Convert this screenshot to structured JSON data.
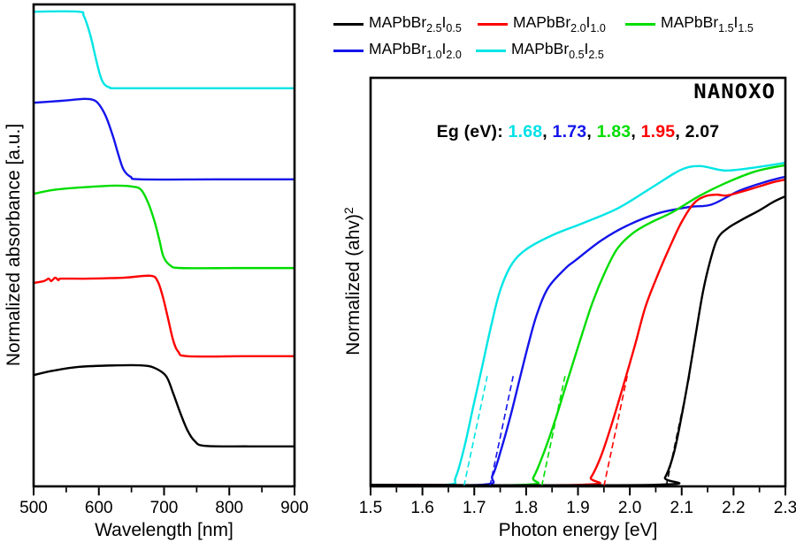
{
  "logo_text": "NANOXO",
  "legend": {
    "items": [
      {
        "color": "#000000",
        "base": "MAPbBr",
        "sub1": "2.5",
        "element": "I",
        "sub2": "0.5"
      },
      {
        "color": "#ff0000",
        "base": "MAPbBr",
        "sub1": "2.0",
        "element": "I",
        "sub2": "1.0"
      },
      {
        "color": "#00dd00",
        "base": "MAPbBr",
        "sub1": "1.5",
        "element": "I",
        "sub2": "1.5"
      },
      {
        "color": "#1414eb",
        "base": "MAPbBr",
        "sub1": "1.0",
        "element": "I",
        "sub2": "2.0"
      },
      {
        "color": "#00e5e5",
        "base": "MAPbBr",
        "sub1": "0.5",
        "element": "I",
        "sub2": "2.5"
      }
    ]
  },
  "eg_annotation": {
    "prefix": "Eg (eV): ",
    "values": [
      {
        "v": "1.68",
        "sep": ", ",
        "color": "#00e0e8"
      },
      {
        "v": "1.73",
        "sep": ", ",
        "color": "#1414eb"
      },
      {
        "v": "1.83",
        "sep": ", ",
        "color": "#00dd00"
      },
      {
        "v": "1.95",
        "sep": ", ",
        "color": "#ff0000"
      },
      {
        "v": "2.07",
        "sep": "",
        "color": "#000000"
      }
    ]
  },
  "left_axis": {
    "xlabel": "Wavelength [nm]",
    "ylabel": "Normalized absorbance [a.u.]"
  },
  "right_axis": {
    "xlabel": "Photon energy [eV]",
    "ylabel_main": "Normalized (ahv)",
    "ylabel_sup": "2"
  },
  "chart_data": [
    {
      "type": "line",
      "panel": "left",
      "xlabel": "Wavelength [nm]",
      "ylabel": "Normalized absorbance [a.u.]",
      "xlim": [
        500,
        900
      ],
      "ylim": [
        0,
        1
      ],
      "grid": false,
      "x_ticks": [
        {
          "v": 500,
          "label": "500"
        },
        {
          "v": 600,
          "label": "600"
        },
        {
          "v": 700,
          "label": "700"
        },
        {
          "v": 800,
          "label": "800"
        },
        {
          "v": 900,
          "label": "900"
        }
      ],
      "x_minor_ticks": [
        550,
        650,
        750,
        850
      ],
      "series": [
        {
          "name": "MAPbBr0.5I2.5",
          "color": "#00e5e5",
          "points": [
            [
              500,
              0.985
            ],
            [
              568,
              0.985
            ],
            [
              577,
              0.976
            ],
            [
              587,
              0.936
            ],
            [
              595,
              0.89
            ],
            [
              602,
              0.853
            ],
            [
              608,
              0.835
            ],
            [
              618,
              0.827
            ],
            [
              632,
              0.826
            ],
            [
              760,
              0.826
            ],
            [
              900,
              0.826
            ]
          ]
        },
        {
          "name": "MAPbBr1.0I2.0",
          "color": "#1414eb",
          "points": [
            [
              500,
              0.796
            ],
            [
              543,
              0.8
            ],
            [
              577,
              0.804
            ],
            [
              591,
              0.802
            ],
            [
              600,
              0.793
            ],
            [
              611,
              0.767
            ],
            [
              622,
              0.725
            ],
            [
              630,
              0.688
            ],
            [
              638,
              0.657
            ],
            [
              649,
              0.642
            ],
            [
              665,
              0.637
            ],
            [
              780,
              0.637
            ],
            [
              900,
              0.637
            ]
          ]
        },
        {
          "name": "MAPbBr1.5I1.5",
          "color": "#00dd00",
          "points": [
            [
              500,
              0.607
            ],
            [
              530,
              0.615
            ],
            [
              570,
              0.62
            ],
            [
              625,
              0.624
            ],
            [
              652,
              0.622
            ],
            [
              665,
              0.615
            ],
            [
              676,
              0.587
            ],
            [
              686,
              0.547
            ],
            [
              693,
              0.51
            ],
            [
              699,
              0.477
            ],
            [
              709,
              0.459
            ],
            [
              726,
              0.453
            ],
            [
              810,
              0.453
            ],
            [
              900,
              0.453
            ]
          ]
        },
        {
          "name": "MAPbBr2.0I1.0",
          "color": "#ff0000",
          "points": [
            [
              500,
              0.422
            ],
            [
              516,
              0.426
            ],
            [
              523,
              0.431
            ],
            [
              527,
              0.426
            ],
            [
              533,
              0.433
            ],
            [
              538,
              0.428
            ],
            [
              543,
              0.431
            ],
            [
              584,
              0.431
            ],
            [
              638,
              0.433
            ],
            [
              679,
              0.437
            ],
            [
              690,
              0.426
            ],
            [
              698,
              0.394
            ],
            [
              706,
              0.349
            ],
            [
              714,
              0.303
            ],
            [
              722,
              0.279
            ],
            [
              736,
              0.27
            ],
            [
              820,
              0.27
            ],
            [
              900,
              0.27
            ]
          ]
        },
        {
          "name": "MAPbBr2.5I0.5",
          "color": "#000000",
          "points": [
            [
              500,
              0.231
            ],
            [
              530,
              0.24
            ],
            [
              570,
              0.248
            ],
            [
              625,
              0.251
            ],
            [
              665,
              0.251
            ],
            [
              685,
              0.246
            ],
            [
              703,
              0.229
            ],
            [
              714,
              0.193
            ],
            [
              725,
              0.152
            ],
            [
              736,
              0.116
            ],
            [
              747,
              0.094
            ],
            [
              763,
              0.084
            ],
            [
              830,
              0.083
            ],
            [
              900,
              0.083
            ]
          ]
        }
      ]
    },
    {
      "type": "line",
      "panel": "right",
      "xlabel": "Photon energy [eV]",
      "ylabel": "Normalized (ahv)^2",
      "xlim": [
        1.5,
        2.3
      ],
      "ylim": [
        0,
        1
      ],
      "grid": false,
      "x_ticks": [
        {
          "v": 1.5,
          "label": "1.5"
        },
        {
          "v": 1.6,
          "label": "1.6"
        },
        {
          "v": 1.7,
          "label": "1.7"
        },
        {
          "v": 1.8,
          "label": "1.8"
        },
        {
          "v": 1.9,
          "label": "1.9"
        },
        {
          "v": 2.0,
          "label": "2.0"
        },
        {
          "v": 2.1,
          "label": "2.1"
        },
        {
          "v": 2.2,
          "label": "2.2"
        },
        {
          "v": 2.3,
          "label": "2.3"
        }
      ],
      "x_minor_ticks": [
        1.55,
        1.65,
        1.75,
        1.85,
        1.95,
        2.05,
        2.15,
        2.25
      ],
      "band_gaps_eV": {
        "MAPbBr0.5I2.5": 1.68,
        "MAPbBr1.0I2.0": 1.73,
        "MAPbBr1.5I1.5": 1.83,
        "MAPbBr2.0I1.0": 1.95,
        "MAPbBr2.5I0.5": 2.07
      },
      "series": [
        {
          "name": "MAPbBr0.5I2.5",
          "color": "#00e5e5",
          "points": [
            [
              1.5,
              0.004
            ],
            [
              1.647,
              0.004
            ],
            [
              1.664,
              0.022
            ],
            [
              1.681,
              0.097
            ],
            [
              1.698,
              0.195
            ],
            [
              1.715,
              0.292
            ],
            [
              1.732,
              0.39
            ],
            [
              1.749,
              0.476
            ],
            [
              1.771,
              0.541
            ],
            [
              1.8,
              0.58
            ],
            [
              1.851,
              0.615
            ],
            [
              1.911,
              0.645
            ],
            [
              1.979,
              0.682
            ],
            [
              2.048,
              0.736
            ],
            [
              2.099,
              0.775
            ],
            [
              2.136,
              0.784
            ],
            [
              2.184,
              0.773
            ],
            [
              2.244,
              0.781
            ],
            [
              2.3,
              0.792
            ]
          ]
        },
        {
          "name": "MAPbBr1.0I2.0",
          "color": "#1414eb",
          "points": [
            [
              1.5,
              0.004
            ],
            [
              1.715,
              0.004
            ],
            [
              1.735,
              0.026
            ],
            [
              1.752,
              0.091
            ],
            [
              1.77,
              0.173
            ],
            [
              1.787,
              0.26
            ],
            [
              1.804,
              0.346
            ],
            [
              1.821,
              0.422
            ],
            [
              1.843,
              0.487
            ],
            [
              1.877,
              0.535
            ],
            [
              1.894,
              0.552
            ],
            [
              1.945,
              0.602
            ],
            [
              1.996,
              0.639
            ],
            [
              2.056,
              0.669
            ],
            [
              2.116,
              0.684
            ],
            [
              2.158,
              0.69
            ],
            [
              2.21,
              0.723
            ],
            [
              2.261,
              0.745
            ],
            [
              2.3,
              0.758
            ]
          ]
        },
        {
          "name": "MAPbBr1.5I1.5",
          "color": "#00dd00",
          "points": [
            [
              1.5,
              0.004
            ],
            [
              1.797,
              0.004
            ],
            [
              1.814,
              0.022
            ],
            [
              1.834,
              0.082
            ],
            [
              1.856,
              0.162
            ],
            [
              1.88,
              0.26
            ],
            [
              1.904,
              0.357
            ],
            [
              1.928,
              0.45
            ],
            [
              1.952,
              0.524
            ],
            [
              1.976,
              0.582
            ],
            [
              2.005,
              0.619
            ],
            [
              2.039,
              0.645
            ],
            [
              2.082,
              0.671
            ],
            [
              2.133,
              0.71
            ],
            [
              2.184,
              0.742
            ],
            [
              2.235,
              0.768
            ],
            [
              2.269,
              0.779
            ],
            [
              2.3,
              0.786
            ]
          ]
        },
        {
          "name": "MAPbBr2.0I1.0",
          "color": "#ff0000",
          "points": [
            [
              1.5,
              0.004
            ],
            [
              1.908,
              0.004
            ],
            [
              1.925,
              0.022
            ],
            [
              1.945,
              0.076
            ],
            [
              1.966,
              0.156
            ],
            [
              1.988,
              0.249
            ],
            [
              2.01,
              0.346
            ],
            [
              2.03,
              0.439
            ],
            [
              2.053,
              0.515
            ],
            [
              2.075,
              0.58
            ],
            [
              2.099,
              0.645
            ],
            [
              2.123,
              0.692
            ],
            [
              2.145,
              0.71
            ],
            [
              2.167,
              0.714
            ],
            [
              2.187,
              0.712
            ],
            [
              2.215,
              0.721
            ],
            [
              2.249,
              0.734
            ],
            [
              2.278,
              0.745
            ],
            [
              2.3,
              0.751
            ]
          ]
        },
        {
          "name": "MAPbBr2.5I0.5",
          "color": "#000000",
          "points": [
            [
              1.5,
              0.004
            ],
            [
              2.05,
              0.004
            ],
            [
              2.068,
              0.022
            ],
            [
              2.085,
              0.082
            ],
            [
              2.1,
              0.173
            ],
            [
              2.114,
              0.271
            ],
            [
              2.128,
              0.379
            ],
            [
              2.141,
              0.476
            ],
            [
              2.155,
              0.552
            ],
            [
              2.169,
              0.606
            ],
            [
              2.189,
              0.632
            ],
            [
              2.218,
              0.654
            ],
            [
              2.249,
              0.675
            ],
            [
              2.278,
              0.697
            ],
            [
              2.3,
              0.71
            ]
          ]
        }
      ],
      "tangents": [
        {
          "color": "#00e5e5",
          "x0": 1.68,
          "y0": 0.0,
          "x1": 1.725,
          "y1": 0.27
        },
        {
          "color": "#1414eb",
          "x0": 1.73,
          "y0": 0.0,
          "x1": 1.775,
          "y1": 0.27
        },
        {
          "color": "#00dd00",
          "x0": 1.83,
          "y0": 0.0,
          "x1": 1.875,
          "y1": 0.27
        },
        {
          "color": "#ff0000",
          "x0": 1.95,
          "y0": 0.0,
          "x1": 1.995,
          "y1": 0.27
        },
        {
          "color": "#000000",
          "x0": 2.07,
          "y0": 0.0,
          "x1": 2.115,
          "y1": 0.27
        }
      ]
    }
  ]
}
